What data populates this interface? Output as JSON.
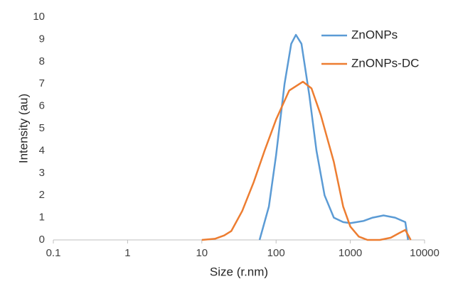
{
  "chart_data": {
    "type": "line",
    "x_label": "Size (r.nm)",
    "y_label": "Intensity (au)",
    "xscale": "log",
    "xlim": [
      0.1,
      10000
    ],
    "xticks": [
      0.1,
      1,
      10,
      100,
      1000,
      10000
    ],
    "ylim": [
      0,
      10
    ],
    "yticks": [
      0,
      1,
      2,
      3,
      4,
      5,
      6,
      7,
      8,
      9,
      10
    ],
    "grid": false,
    "legend": "upper right",
    "series": [
      {
        "name": "ZnONPs",
        "color": "#5b9bd5",
        "x": [
          60,
          80,
          100,
          130,
          160,
          185,
          220,
          280,
          350,
          450,
          600,
          800,
          1000,
          1500,
          2000,
          2800,
          4000,
          5500,
          6000
        ],
        "values": [
          0,
          1.5,
          3.8,
          7,
          8.8,
          9.2,
          8.8,
          6.5,
          4,
          2,
          1,
          0.8,
          0.75,
          0.85,
          1.0,
          1.1,
          1.0,
          0.8,
          0
        ]
      },
      {
        "name": "ZnONPs-DC",
        "color": "#ed7d31",
        "x": [
          10,
          15,
          20,
          25,
          35,
          50,
          70,
          100,
          150,
          230,
          300,
          400,
          600,
          800,
          1000,
          1300,
          1700,
          2500,
          3500,
          4500,
          5500,
          6500
        ],
        "values": [
          0,
          0.05,
          0.2,
          0.4,
          1.3,
          2.6,
          4.0,
          5.4,
          6.7,
          7.1,
          6.8,
          5.6,
          3.5,
          1.5,
          0.6,
          0.15,
          0,
          0,
          0.1,
          0.3,
          0.45,
          0
        ]
      }
    ]
  }
}
